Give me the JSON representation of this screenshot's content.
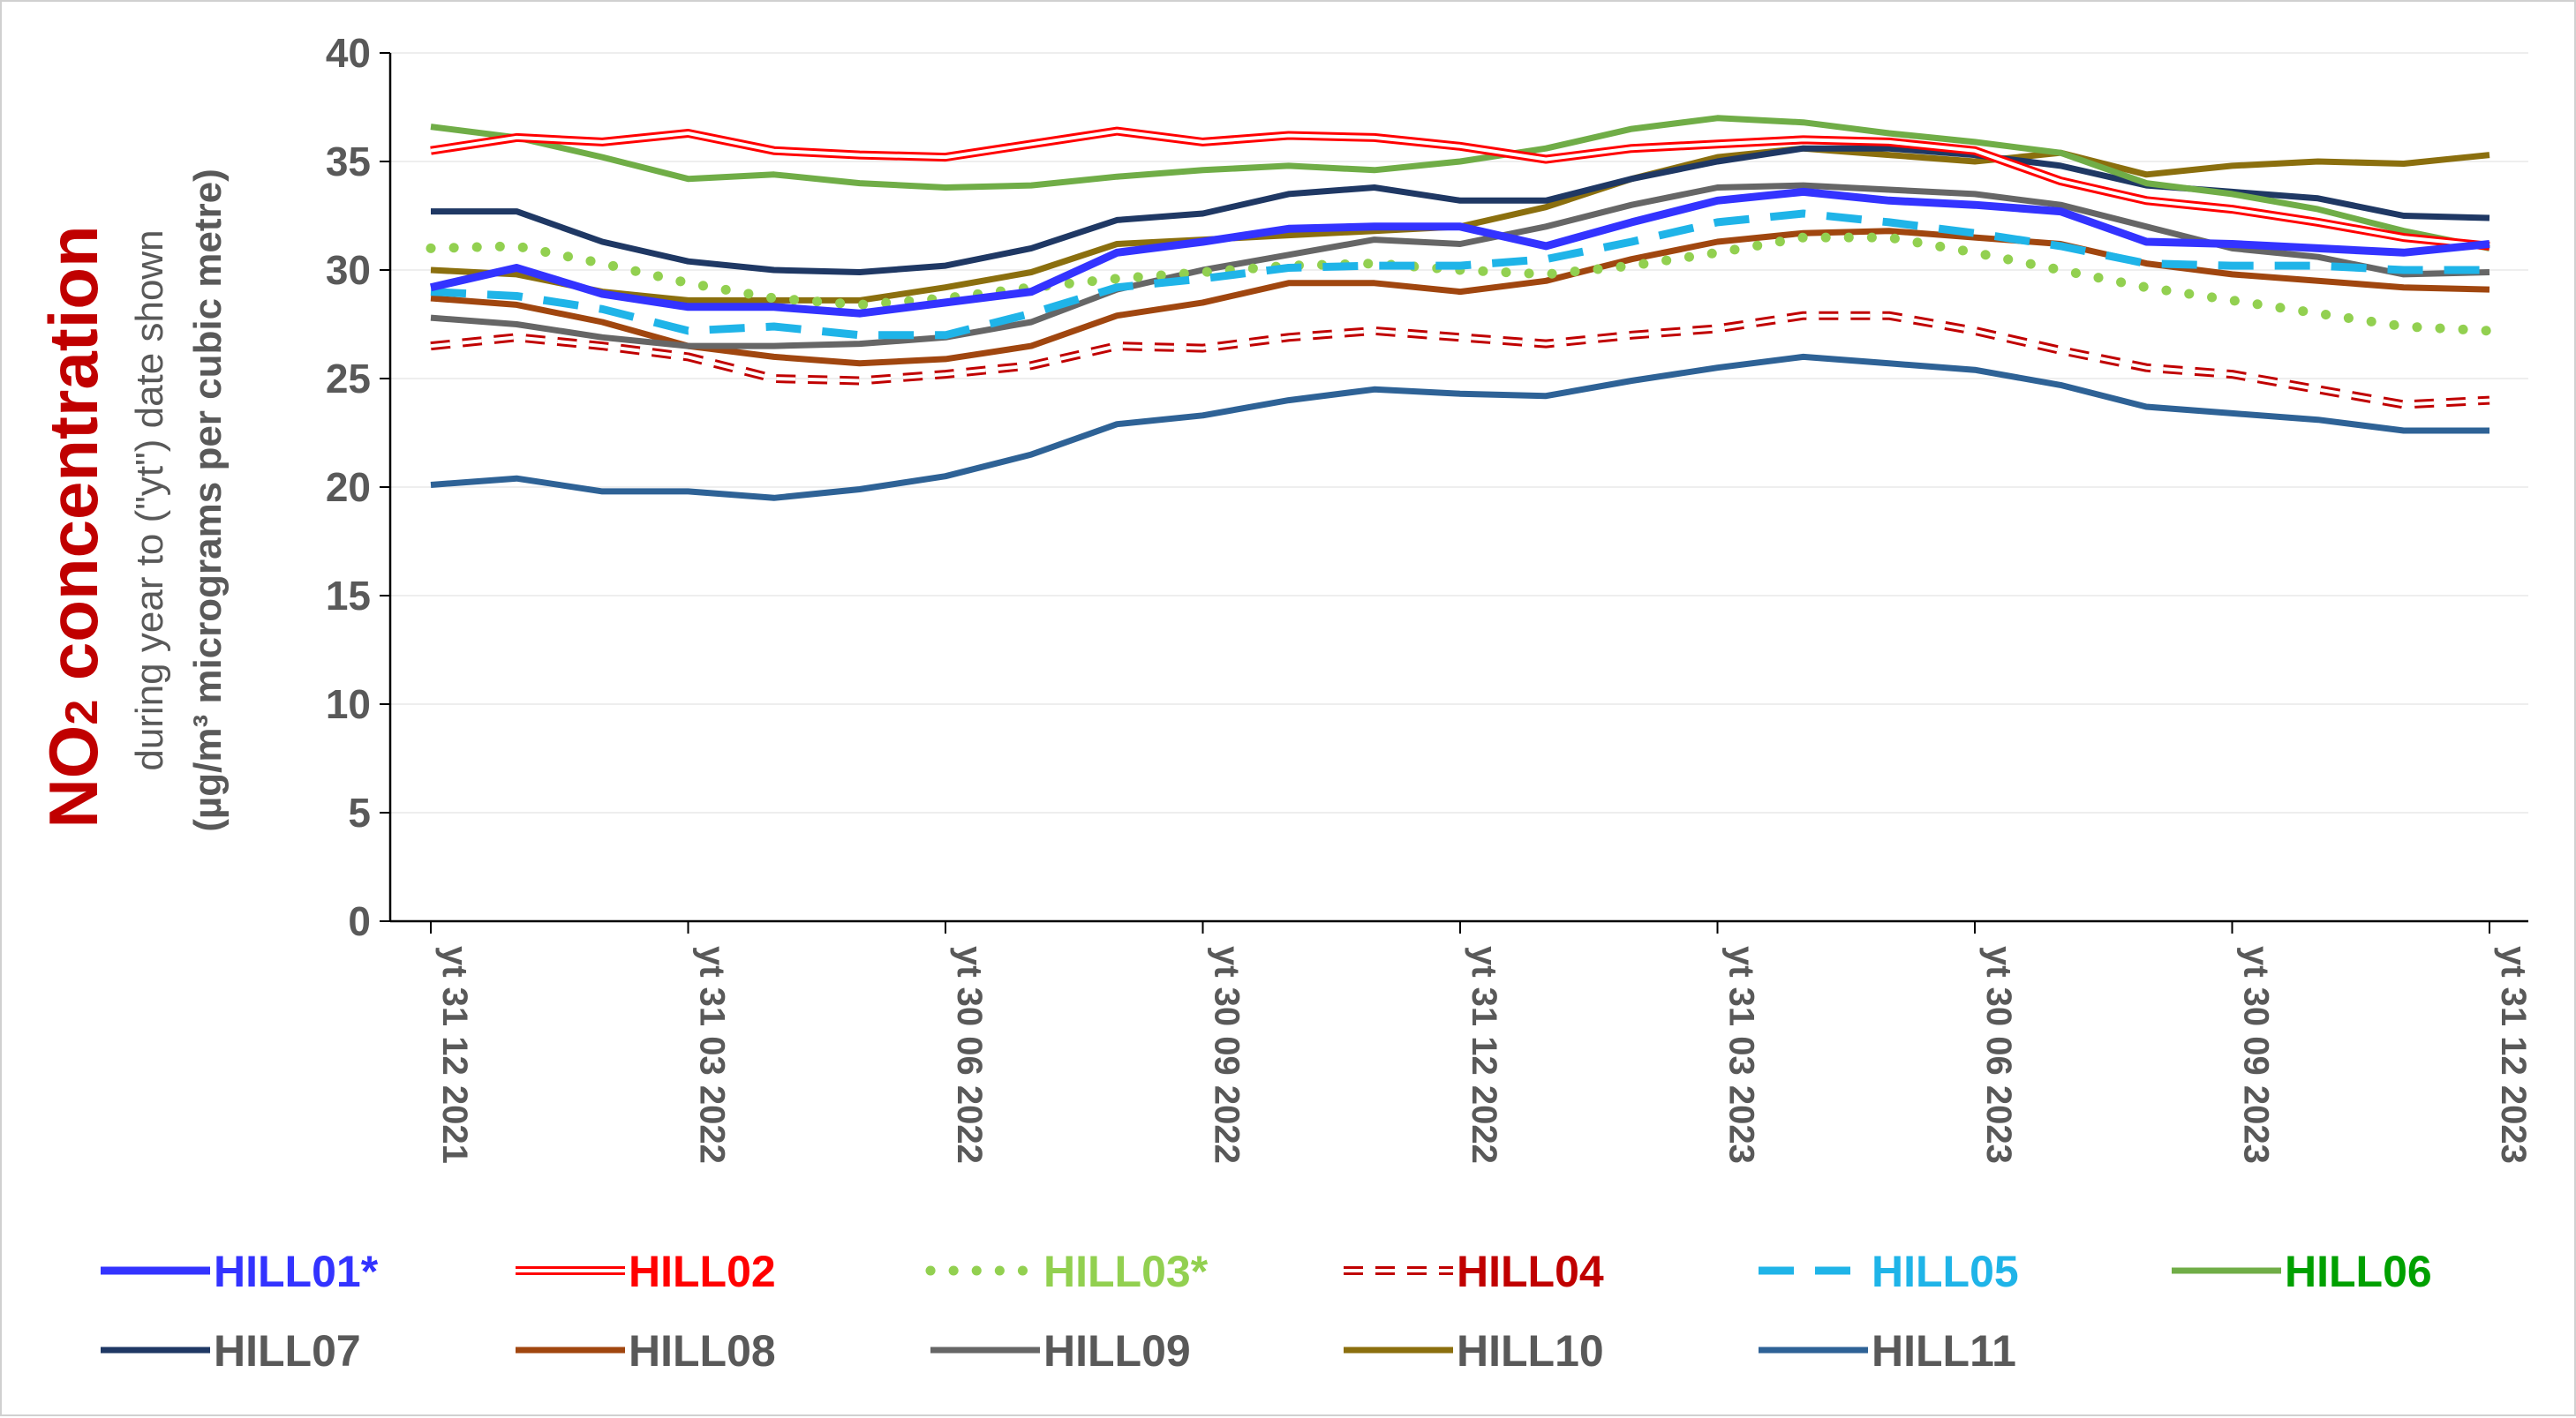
{
  "chart_data": {
    "type": "line",
    "y_title": {
      "main_prefix": "NO",
      "main_subscript": "2",
      "main_suffix": " concentration",
      "line2": "during year to (\"yt\") date shown",
      "line3": "(µg/m³ micrograms per cubic metre)"
    },
    "ylim": [
      0,
      40
    ],
    "y_ticks": [
      "0",
      "5",
      "10",
      "15",
      "20",
      "25",
      "30",
      "35",
      "40"
    ],
    "x_tick_labels": [
      "yt 31 12 2021",
      "yt 31 03 2022",
      "yt 30 06 2022",
      "yt 30 09 2022",
      "yt 31 12 2022",
      "yt 31 03 2023",
      "yt 30 06 2023",
      "yt 30 09 2023",
      "yt 31 12 2023"
    ],
    "x_tick_positions": [
      0,
      3,
      6,
      9,
      12,
      15,
      18,
      21,
      24
    ],
    "n_points": 25,
    "grid": "horizontal",
    "legend_position": "bottom",
    "series": [
      {
        "name": "HILL01*",
        "color": "#3333ff",
        "style": "thick",
        "values": [
          29.2,
          30.1,
          28.9,
          28.3,
          28.3,
          28.0,
          28.5,
          29.0,
          30.8,
          31.3,
          31.9,
          32.0,
          32.0,
          31.1,
          32.2,
          33.2,
          33.6,
          33.2,
          33.0,
          32.7,
          31.3,
          31.2,
          31.0,
          30.8,
          31.2
        ]
      },
      {
        "name": "HILL02",
        "color": "#ff0000",
        "style": "double",
        "values": [
          35.5,
          36.1,
          35.9,
          36.3,
          35.5,
          35.3,
          35.2,
          35.8,
          36.4,
          35.9,
          36.2,
          36.1,
          35.7,
          35.1,
          35.6,
          35.8,
          36.0,
          35.9,
          35.5,
          34.1,
          33.2,
          32.8,
          32.2,
          31.5,
          31.1
        ]
      },
      {
        "name": "HILL03*",
        "color": "#92d050",
        "style": "dotted",
        "values": [
          31.0,
          31.1,
          30.3,
          29.4,
          28.7,
          28.4,
          28.7,
          29.2,
          29.6,
          29.9,
          30.2,
          30.3,
          30.0,
          29.8,
          30.2,
          30.8,
          31.5,
          31.5,
          30.8,
          30.0,
          29.2,
          28.6,
          28.0,
          27.4,
          27.2
        ]
      },
      {
        "name": "HILL04",
        "color": "#c00000",
        "style": "dashed-double",
        "values": [
          26.5,
          26.9,
          26.5,
          26.0,
          25.0,
          24.9,
          25.2,
          25.6,
          26.5,
          26.4,
          26.9,
          27.2,
          26.9,
          26.6,
          27.0,
          27.3,
          27.9,
          27.9,
          27.2,
          26.3,
          25.5,
          25.2,
          24.5,
          23.8,
          24.0
        ]
      },
      {
        "name": "HILL05",
        "color": "#1fb4e8",
        "style": "dashed",
        "values": [
          29.0,
          28.8,
          28.2,
          27.2,
          27.4,
          27.0,
          27.0,
          28.0,
          29.2,
          29.6,
          30.1,
          30.2,
          30.2,
          30.5,
          31.3,
          32.2,
          32.6,
          32.2,
          31.7,
          31.1,
          30.3,
          30.2,
          30.2,
          30.0,
          30.0
        ]
      },
      {
        "name": "HILL06",
        "color": "#70ad47",
        "style": "solid",
        "values": [
          36.6,
          36.1,
          35.2,
          34.2,
          34.4,
          34.0,
          33.8,
          33.9,
          34.3,
          34.6,
          34.8,
          34.6,
          35.0,
          35.6,
          36.5,
          37.0,
          36.8,
          36.3,
          35.9,
          35.4,
          34.0,
          33.5,
          32.8,
          31.8,
          31.0
        ]
      },
      {
        "name": "HILL07",
        "color": "#1f3864",
        "style": "solid",
        "values": [
          32.7,
          32.7,
          31.3,
          30.4,
          30.0,
          29.9,
          30.2,
          31.0,
          32.3,
          32.6,
          33.5,
          33.8,
          33.2,
          33.2,
          34.2,
          35.0,
          35.6,
          35.6,
          35.3,
          34.8,
          33.9,
          33.6,
          33.3,
          32.5,
          32.4
        ]
      },
      {
        "name": "HILL08",
        "color": "#a0460f",
        "style": "solid",
        "values": [
          28.7,
          28.4,
          27.6,
          26.5,
          26.0,
          25.7,
          25.9,
          26.5,
          27.9,
          28.5,
          29.4,
          29.4,
          29.0,
          29.5,
          30.5,
          31.3,
          31.7,
          31.8,
          31.5,
          31.2,
          30.3,
          29.8,
          29.5,
          29.2,
          29.1
        ]
      },
      {
        "name": "HILL09",
        "color": "#666666",
        "style": "solid",
        "values": [
          27.8,
          27.5,
          26.9,
          26.5,
          26.5,
          26.6,
          26.9,
          27.6,
          29.1,
          30.0,
          30.7,
          31.4,
          31.2,
          32.0,
          33.0,
          33.8,
          33.9,
          33.7,
          33.5,
          33.0,
          32.0,
          31.0,
          30.6,
          29.8,
          29.9
        ]
      },
      {
        "name": "HILL10",
        "color": "#8b6f0e",
        "style": "solid",
        "values": [
          30.0,
          29.8,
          29.0,
          28.6,
          28.6,
          28.6,
          29.2,
          29.9,
          31.2,
          31.4,
          31.6,
          31.8,
          32.0,
          32.9,
          34.2,
          35.2,
          35.6,
          35.3,
          35.0,
          35.4,
          34.4,
          34.8,
          35.0,
          34.9,
          35.3
        ]
      },
      {
        "name": "HILL11",
        "color": "#2e6296",
        "style": "solid",
        "values": [
          20.1,
          20.4,
          19.8,
          19.8,
          19.5,
          19.9,
          20.5,
          21.5,
          22.9,
          23.3,
          24.0,
          24.5,
          24.3,
          24.2,
          24.9,
          25.5,
          26.0,
          25.7,
          25.4,
          24.7,
          23.7,
          23.4,
          23.1,
          22.6,
          22.6
        ]
      }
    ],
    "legend_text_colors": [
      "#3333ff",
      "#ff0000",
      "#92d050",
      "#c00000",
      "#1fb4e8",
      "#00a000",
      "#595959",
      "#595959",
      "#595959",
      "#595959",
      "#595959"
    ]
  }
}
